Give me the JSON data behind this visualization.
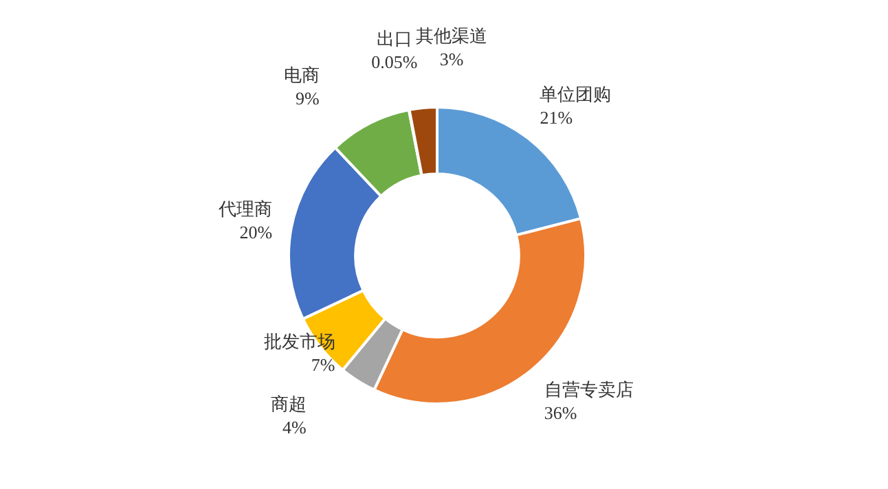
{
  "chart_data": {
    "type": "donut",
    "categories": [
      "单位团购",
      "自营专卖店",
      "商超",
      "批发市场",
      "代理商",
      "电商",
      "出口",
      "其他渠道"
    ],
    "values": [
      21,
      36,
      4,
      7,
      20,
      9,
      0.05,
      3
    ],
    "value_labels": [
      "21%",
      "36%",
      "4%",
      "7%",
      "20%",
      "9%",
      "0.05%",
      "3%"
    ],
    "colors": [
      "#5b9bd5",
      "#ed7d31",
      "#a5a5a5",
      "#ffc000",
      "#4472c4",
      "#70ad47",
      "#264478",
      "#9e480e"
    ]
  }
}
